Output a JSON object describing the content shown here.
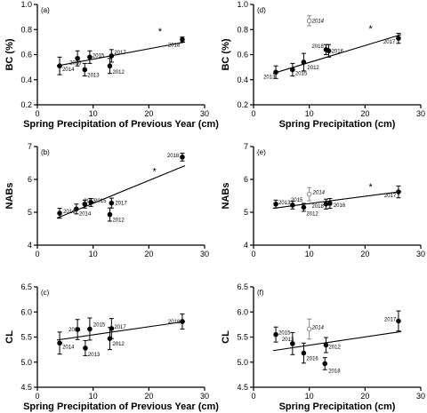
{
  "chart_data": [
    {
      "panel": "(a)",
      "type": "scatter",
      "xlabel": "Spring Precipitation of Previous Year (cm)",
      "ylabel": "BC (%)",
      "xlim": [
        0,
        30
      ],
      "ylim": [
        0.2,
        1.0
      ],
      "xticks": [
        0,
        10,
        20,
        30
      ],
      "yticks": [
        0.2,
        0.4,
        0.6,
        0.8,
        1.0
      ],
      "points": [
        {
          "label": "2014",
          "x": 4,
          "y": 0.51,
          "err": 0.07,
          "open": false
        },
        {
          "label": "2016",
          "x": 7.2,
          "y": 0.57,
          "err": 0.06,
          "open": false
        },
        {
          "label": "2013",
          "x": 8.5,
          "y": 0.48,
          "err": 0.05,
          "open": false
        },
        {
          "label": "2015",
          "x": 9.4,
          "y": 0.58,
          "err": 0.05,
          "open": false
        },
        {
          "label": "2012",
          "x": 13,
          "y": 0.51,
          "err": 0.06,
          "open": false
        },
        {
          "label": "2017",
          "x": 13.3,
          "y": 0.59,
          "err": 0.05,
          "open": false
        },
        {
          "label": "2018",
          "x": 26,
          "y": 0.72,
          "err": 0.02,
          "open": false
        }
      ],
      "trendline": {
        "x": [
          3.5,
          26.5
        ],
        "y": [
          0.51,
          0.7
        ]
      },
      "significance": {
        "text": "*",
        "x": 22,
        "y": 0.76
      }
    },
    {
      "panel": "(d)",
      "type": "scatter",
      "xlabel": "Spring Precipitation (cm)",
      "ylabel": "BC (%)",
      "xlim": [
        0,
        30
      ],
      "ylim": [
        0.2,
        1.0
      ],
      "xticks": [
        0,
        10,
        20,
        30
      ],
      "yticks": [
        0.2,
        0.4,
        0.6,
        0.8,
        1.0
      ],
      "points": [
        {
          "label": "2013",
          "x": 4,
          "y": 0.46,
          "err": 0.05,
          "open": false
        },
        {
          "label": "2015",
          "x": 7,
          "y": 0.48,
          "err": 0.05,
          "open": false
        },
        {
          "label": "2012",
          "x": 9,
          "y": 0.54,
          "err": 0.07,
          "open": false
        },
        {
          "label": "2014",
          "x": 10,
          "y": 0.87,
          "err": 0.04,
          "open": true
        },
        {
          "label": "2018",
          "x": 13,
          "y": 0.64,
          "err": 0.04,
          "open": false
        },
        {
          "label": "2016",
          "x": 13.5,
          "y": 0.63,
          "err": 0.05,
          "open": false
        },
        {
          "label": "2017",
          "x": 26,
          "y": 0.73,
          "err": 0.04,
          "open": false
        }
      ],
      "trendline": {
        "x": [
          3.5,
          26.5
        ],
        "y": [
          0.45,
          0.76
        ]
      },
      "significance": {
        "text": "*",
        "x": 21,
        "y": 0.78
      }
    },
    {
      "panel": "(b)",
      "type": "scatter",
      "xlabel": "",
      "ylabel": "NABs",
      "xlim": [
        0,
        30
      ],
      "ylim": [
        4,
        7
      ],
      "xticks": [
        0,
        10,
        20,
        30
      ],
      "yticks": [
        4,
        5,
        6,
        7
      ],
      "points": [
        {
          "label": "2016",
          "x": 4,
          "y": 4.97,
          "err": 0.15,
          "open": false
        },
        {
          "label": "2014",
          "x": 7,
          "y": 5.1,
          "err": 0.15,
          "open": false
        },
        {
          "label": "2013",
          "x": 8.5,
          "y": 5.25,
          "err": 0.12,
          "open": false
        },
        {
          "label": "2015",
          "x": 9.6,
          "y": 5.3,
          "err": 0.12,
          "open": false
        },
        {
          "label": "2012",
          "x": 13,
          "y": 4.93,
          "err": 0.2,
          "open": false
        },
        {
          "label": "2017",
          "x": 13.3,
          "y": 5.28,
          "err": 0.15,
          "open": false
        },
        {
          "label": "2018",
          "x": 26,
          "y": 6.68,
          "err": 0.12,
          "open": false
        }
      ],
      "trendline": {
        "x": [
          3.5,
          26.5
        ],
        "y": [
          4.82,
          6.42
        ]
      },
      "significance": {
        "text": "*",
        "x": 21,
        "y": 6.15
      }
    },
    {
      "panel": "(e)",
      "type": "scatter",
      "xlabel": "",
      "ylabel": "NABs",
      "xlim": [
        0,
        30
      ],
      "ylim": [
        4,
        7
      ],
      "xticks": [
        0,
        10,
        20,
        30
      ],
      "yticks": [
        4,
        5,
        6,
        7
      ],
      "points": [
        {
          "label": "2013",
          "x": 4,
          "y": 5.25,
          "err": 0.12,
          "open": false
        },
        {
          "label": "2015",
          "x": 7,
          "y": 5.22,
          "err": 0.12,
          "open": false
        },
        {
          "label": "2012",
          "x": 9,
          "y": 5.15,
          "err": 0.12,
          "open": false
        },
        {
          "label": "2014",
          "x": 10,
          "y": 5.55,
          "err": 0.2,
          "open": true
        },
        {
          "label": "2018",
          "x": 13,
          "y": 5.25,
          "err": 0.15,
          "open": false
        },
        {
          "label": "2016",
          "x": 13.7,
          "y": 5.27,
          "err": 0.15,
          "open": false
        },
        {
          "label": "2017",
          "x": 26,
          "y": 5.62,
          "err": 0.18,
          "open": false
        }
      ],
      "trendline": {
        "x": [
          3.5,
          26.5
        ],
        "y": [
          5.12,
          5.63
        ]
      },
      "significance": {
        "text": "*",
        "x": 21,
        "y": 5.68
      }
    },
    {
      "panel": "(c)",
      "type": "scatter",
      "xlabel": "Spring Precipitation of Previous Year (cm)",
      "ylabel": "CL",
      "xlim": [
        0,
        30
      ],
      "ylim": [
        4.5,
        6.5
      ],
      "xticks": [
        0,
        10,
        20,
        30
      ],
      "yticks": [
        4.5,
        5.0,
        5.5,
        6.0,
        6.5
      ],
      "points": [
        {
          "label": "2014",
          "x": 4,
          "y": 5.38,
          "err": 0.22,
          "open": false
        },
        {
          "label": "2016",
          "x": 7.2,
          "y": 5.65,
          "err": 0.2,
          "open": false
        },
        {
          "label": "2013",
          "x": 8.6,
          "y": 5.28,
          "err": 0.15,
          "open": false
        },
        {
          "label": "2015",
          "x": 9.4,
          "y": 5.66,
          "err": 0.22,
          "open": false
        },
        {
          "label": "2012",
          "x": 13,
          "y": 5.47,
          "err": 0.22,
          "open": false
        },
        {
          "label": "2017",
          "x": 13.3,
          "y": 5.67,
          "err": 0.2,
          "open": false
        },
        {
          "label": "2018",
          "x": 26,
          "y": 5.81,
          "err": 0.15,
          "open": false
        }
      ],
      "trendline": {
        "x": [
          3.5,
          26.5
        ],
        "y": [
          5.44,
          5.81
        ]
      }
    },
    {
      "panel": "(f)",
      "type": "scatter",
      "xlabel": "Spring Precipitation (cm)",
      "ylabel": "CL",
      "xlim": [
        0,
        30
      ],
      "ylim": [
        4.5,
        6.5
      ],
      "xticks": [
        0,
        10,
        20,
        30
      ],
      "yticks": [
        4.5,
        5.0,
        5.5,
        6.0,
        6.5
      ],
      "points": [
        {
          "label": "2015",
          "x": 4,
          "y": 5.55,
          "err": 0.15,
          "open": false
        },
        {
          "label": "2013",
          "x": 7,
          "y": 5.37,
          "err": 0.22,
          "open": false
        },
        {
          "label": "2016",
          "x": 9,
          "y": 5.18,
          "err": 0.2,
          "open": false
        },
        {
          "label": "2014",
          "x": 10,
          "y": 5.66,
          "err": 0.2,
          "open": true
        },
        {
          "label": "2012",
          "x": 13,
          "y": 5.34,
          "err": 0.15,
          "open": false
        },
        {
          "label": "2018",
          "x": 12.8,
          "y": 4.97,
          "err": 0.12,
          "open": false
        },
        {
          "label": "2017",
          "x": 26,
          "y": 5.82,
          "err": 0.2,
          "open": false
        }
      ],
      "trendline": {
        "x": [
          3.5,
          26.5
        ],
        "y": [
          5.23,
          5.61
        ]
      }
    }
  ]
}
